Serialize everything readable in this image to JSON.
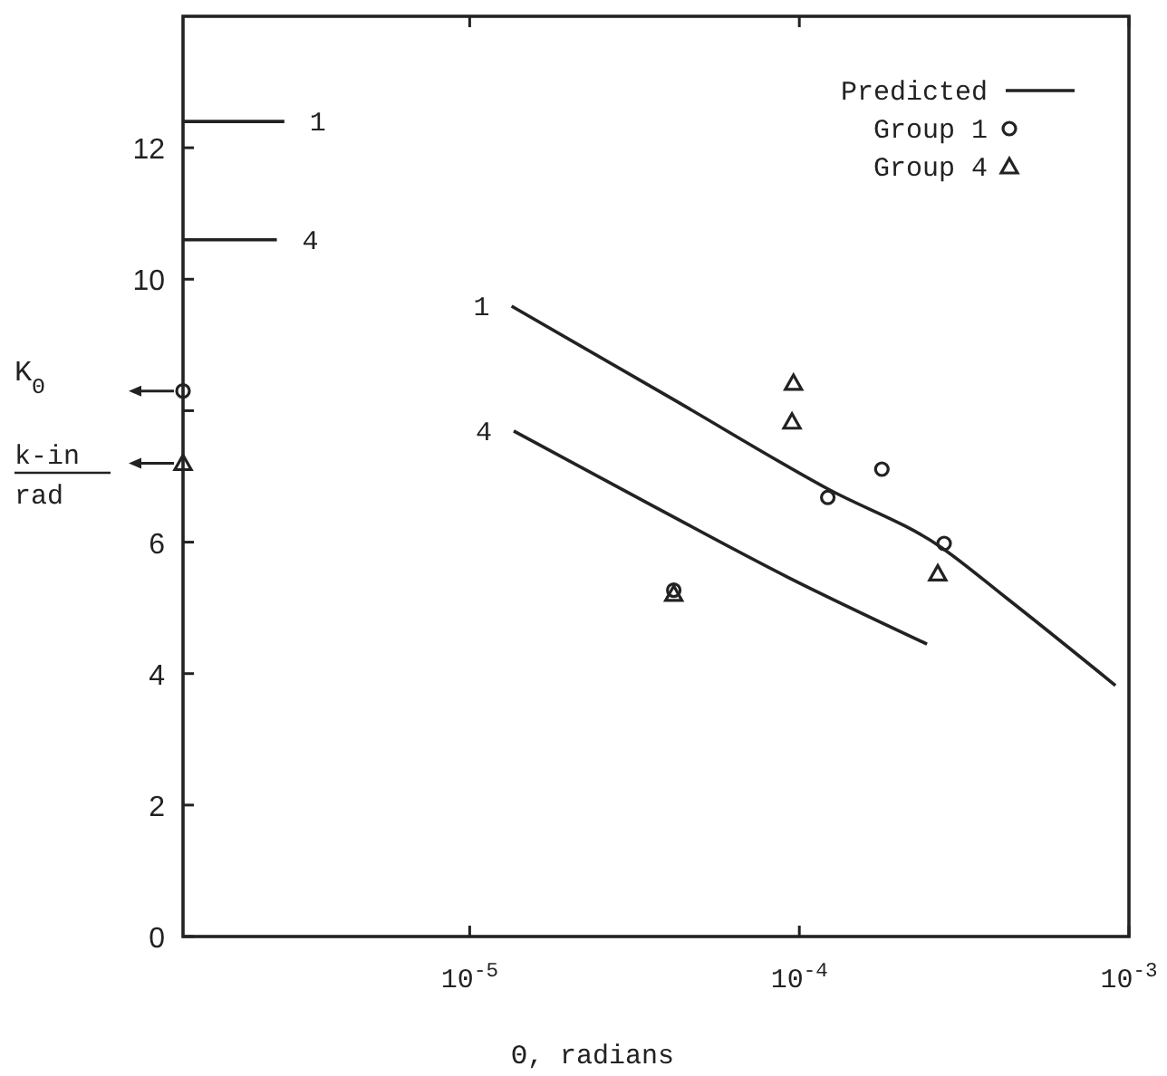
{
  "chart_data": {
    "type": "line",
    "xlabel": "Θ, radians",
    "ylabel": "K$_{Θ}$",
    "log": "x",
    "xlim": [
      1.35e-06,
      0.001
    ],
    "xticks": [
      {
        "value": 1e-05,
        "label": "10$^{-5}$"
      },
      {
        "value": 0.0001,
        "label": "10$^{-4}$"
      },
      {
        "value": 0.001,
        "label": "10$^{-3}$"
      }
    ],
    "ylim": [
      0,
      14
    ],
    "yticks": [
      0,
      2,
      4,
      6,
      {
        "value": 8,
        "label": null
      },
      10,
      12
    ],
    "legend": "top right",
    "grid": false,
    "series": [
      {
        "name": "Predicted",
        "color": "#222222",
        "line_style": "solid",
        "x": [
          1.34e-05,
          4.12e-05,
          0.000122,
          0.000266,
          0.000425,
          0.00091
        ],
        "values": [
          9.59,
          8.18,
          6.81,
          5.94,
          5.15,
          3.82
        ]
      },
      {
        "color": "#222222",
        "line_style": "solid",
        "x": [
          1.36e-05,
          3.63e-05,
          9.2e-05,
          0.000244
        ],
        "values": [
          7.69,
          6.54,
          5.47,
          4.45
        ]
      },
      {
        "color": "#222222",
        "line_style": "solid",
        "x": [
          1.35e-06,
          2.74e-06
        ],
        "values": [
          12.4,
          12.4
        ]
      },
      {
        "color": "#222222",
        "line_style": "solid",
        "x": [
          1.35e-06,
          2.6e-06
        ],
        "values": [
          10.6,
          10.6
        ]
      },
      {
        "name": "Group 1",
        "type": "scatter",
        "marker": "circle",
        "color": "#222222",
        "x": [
          1.35e-06,
          4.16e-05,
          0.000122,
          0.000178,
          0.000275
        ],
        "values": [
          8.3,
          5.27,
          6.68,
          7.11,
          5.98
        ]
      },
      {
        "name": "Group 4",
        "type": "scatter",
        "marker": "triangle",
        "color": "#222222",
        "x": [
          1.35e-06,
          4.16e-05,
          9.5e-05,
          9.6e-05,
          0.000263
        ],
        "values": [
          7.2,
          5.21,
          7.83,
          8.42,
          5.52
        ]
      }
    ],
    "annotations": [
      {
        "text": "1",
        "x": 1.34e-05,
        "y": 9.59
      },
      {
        "text": "4",
        "x": 1.36e-05,
        "y": 7.69
      },
      {
        "text": "1",
        "x": 2.74e-06,
        "y": 12.4
      },
      {
        "text": "4",
        "x": 2.6e-06,
        "y": 10.6
      },
      "k-in",
      "rad"
    ]
  }
}
